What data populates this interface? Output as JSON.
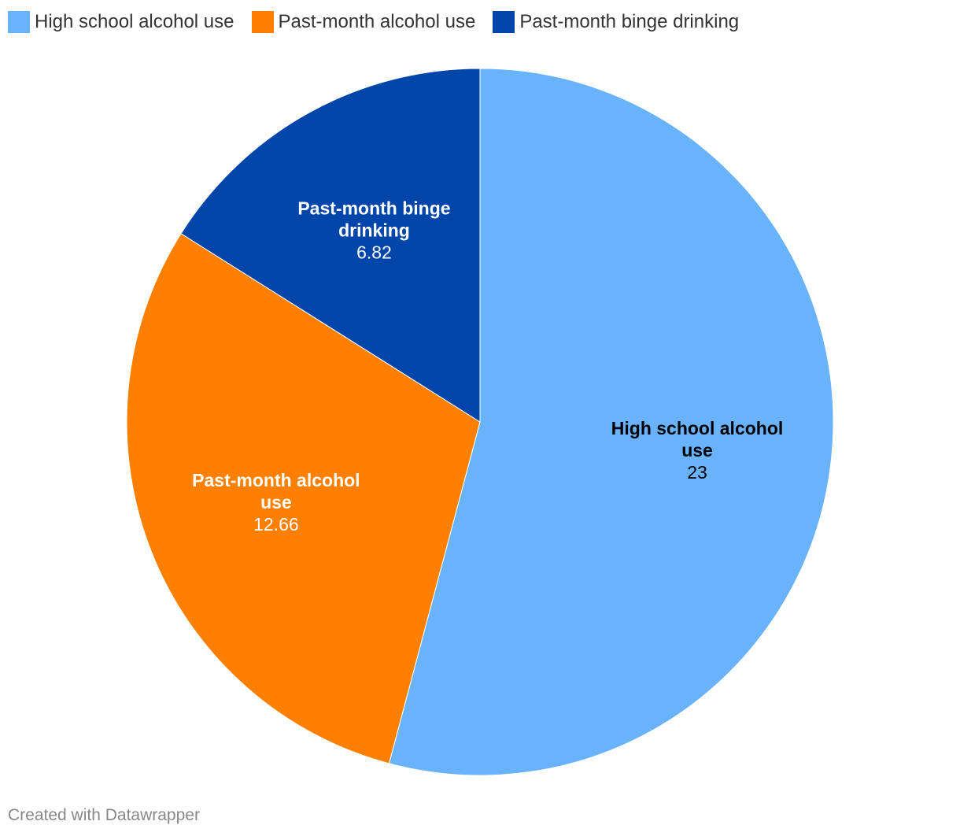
{
  "chart_data": {
    "type": "pie",
    "categories": [
      "High school alcohol use",
      "Past-month alcohol use",
      "Past-month binge drinking"
    ],
    "values": [
      23,
      12.66,
      6.82
    ],
    "value_labels": [
      "23",
      "12.66",
      "6.82"
    ],
    "slice_labels": [
      [
        "High school alcohol",
        "use"
      ],
      [
        "Past-month alcohol",
        "use"
      ],
      [
        "Past-month binge",
        "drinking"
      ]
    ],
    "colors": [
      "#69b3fd",
      "#ff7f00",
      "#0046aa"
    ],
    "label_colors": [
      "#000000",
      "#ffffff",
      "#ffffff"
    ],
    "legend_position": "top-left",
    "title": ""
  },
  "legend": {
    "items": [
      {
        "label": "High school alcohol use",
        "color": "#69b3fd"
      },
      {
        "label": "Past-month alcohol use",
        "color": "#ff7f00"
      },
      {
        "label": "Past-month binge drinking",
        "color": "#0046aa"
      }
    ]
  },
  "footer": {
    "credit": "Created with Datawrapper"
  }
}
